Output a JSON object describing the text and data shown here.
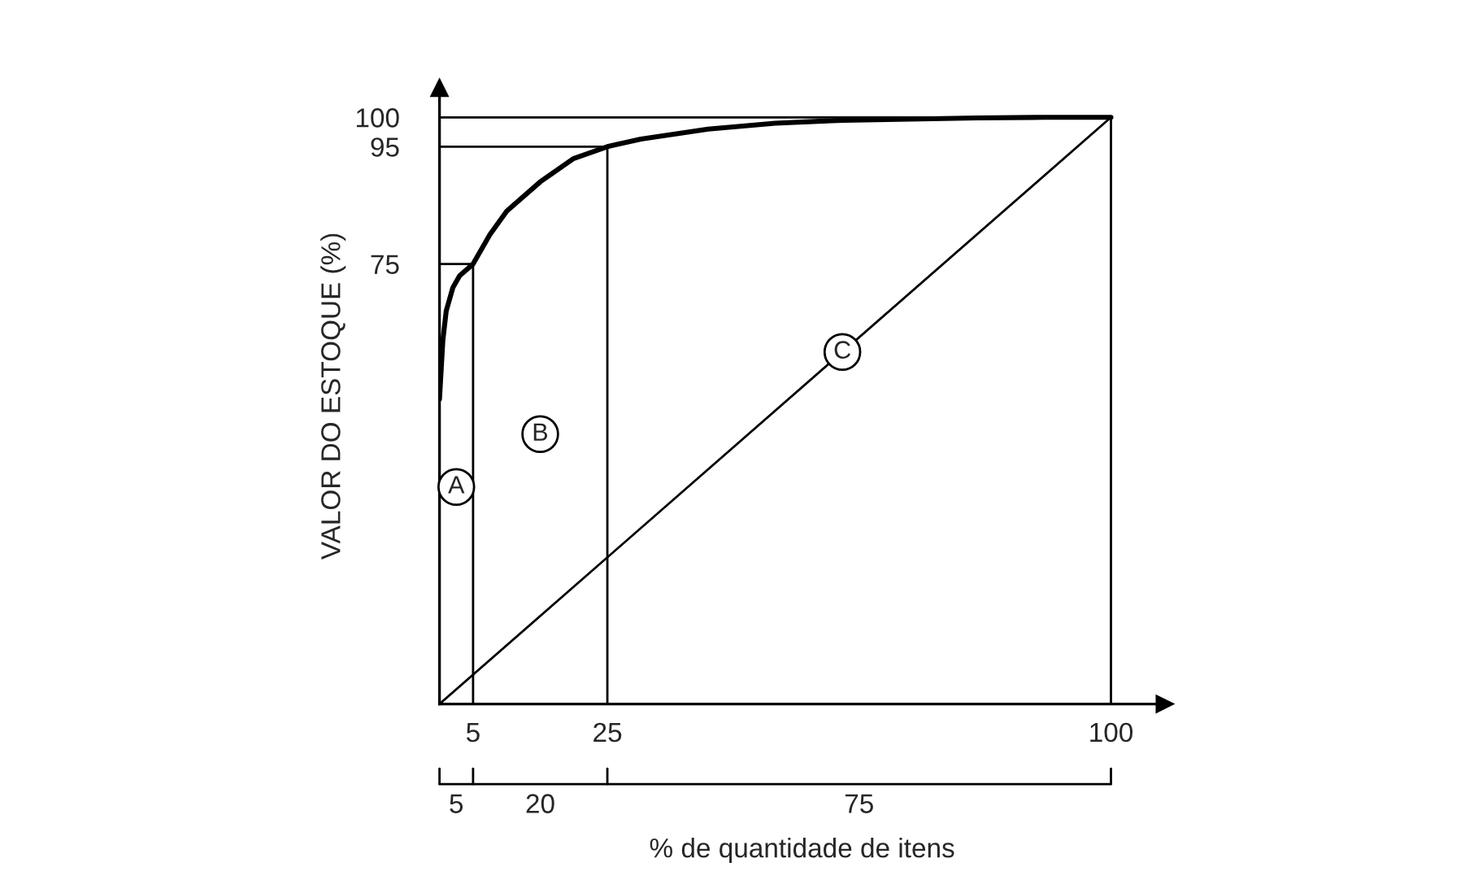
{
  "chart_data": {
    "type": "line",
    "ylabel": "VALOR DO ESTOQUE (%)",
    "xlabel": "% de quantidade de itens",
    "xlim": [
      0,
      108
    ],
    "ylim": [
      0,
      105
    ],
    "xticks": [
      5,
      25,
      100
    ],
    "yticks": [
      75,
      95,
      100
    ],
    "grid": false,
    "marker": "none",
    "line_style": "solid",
    "series": [
      {
        "color": "#000000",
        "x": [
          0,
          0.5,
          1,
          2,
          3,
          5,
          7.5,
          10,
          15,
          20,
          25,
          30,
          40,
          50,
          60,
          70,
          80,
          90,
          100
        ],
        "values": [
          52,
          62,
          67,
          71,
          73,
          75,
          80,
          84,
          89,
          93,
          95,
          96.3,
          98,
          99,
          99.5,
          99.7,
          99.9,
          100,
          100
        ]
      },
      {
        "color": "#000000",
        "x": [
          0,
          100
        ],
        "values": [
          0,
          100
        ]
      },
      {
        "color": "#000000",
        "x": [
          0,
          5
        ],
        "values": [
          75,
          75
        ]
      },
      {
        "color": "#000000",
        "x": [
          0,
          25
        ],
        "values": [
          95,
          95
        ]
      },
      {
        "color": "#000000",
        "x": [
          0,
          100
        ],
        "values": [
          100,
          100
        ]
      },
      {
        "color": "#000000",
        "x": [
          5,
          5
        ],
        "values": [
          0,
          75
        ]
      },
      {
        "color": "#000000",
        "x": [
          25,
          25
        ],
        "values": [
          0,
          95
        ]
      },
      {
        "color": "#000000",
        "x": [
          100,
          100
        ],
        "values": [
          0,
          100
        ]
      }
    ],
    "annotations": [
      {
        "text": "A",
        "x": 2.5,
        "y": 37
      },
      {
        "text": "B",
        "x": 15,
        "y": 46
      },
      {
        "text": "C",
        "x": 60,
        "y": 60
      },
      "5",
      "20",
      "75"
    ]
  }
}
